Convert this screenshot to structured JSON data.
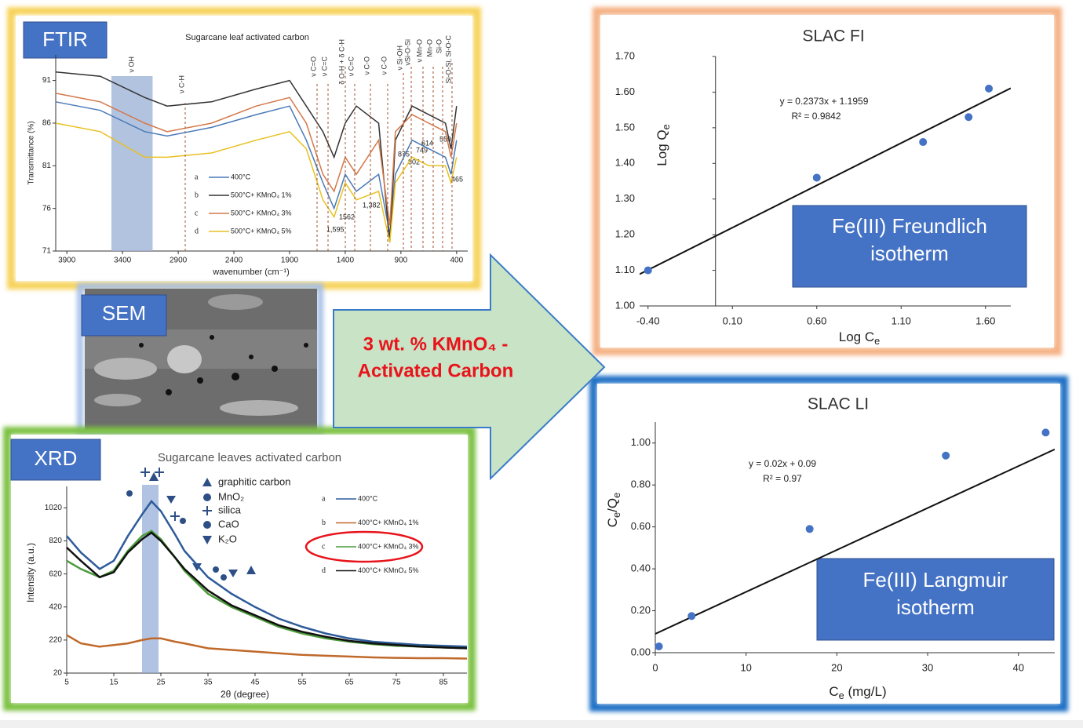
{
  "labels": {
    "ftir": "FTIR",
    "sem": "SEM",
    "xrd": "XRD"
  },
  "arrow_text": [
    "3 wt. % KMnO₄ -",
    "Activated Carbon"
  ],
  "freundlich_box": [
    "Fe(III) Freundlich",
    "isotherm"
  ],
  "langmuir_box": [
    "Fe(III) Langmuir",
    "isotherm"
  ],
  "ftir_bands": [
    "ν OH",
    "ν C-H",
    "ν C=O",
    "ν C=C",
    "δ O-H + δ C-H",
    "ν C=C",
    "ν C-O",
    "ν C-O",
    "ν Si-OH",
    "νSi-O-Si",
    "ν Mn-O",
    "Mn-O",
    "Si-O",
    "Si-O-Si, Si-O-C"
  ],
  "ftir_peaks": [
    "1,595",
    "1562",
    "1,382",
    "875",
    "749",
    "802",
    "614",
    "559",
    "465"
  ],
  "xrd_phases": [
    "graphitic carbon",
    "MnO₂",
    "silica",
    "CaO",
    "K₂O"
  ],
  "chart_data": [
    {
      "type": "line",
      "title": "Sugarcane leaf activated carbon",
      "xlabel": "wavenumber (cm⁻¹)",
      "ylabel": "Transmittance (%)",
      "xlim": [
        4000,
        300
      ],
      "ylim": [
        71,
        94
      ],
      "xticks": [
        3900,
        3400,
        2900,
        2400,
        1900,
        1400,
        900,
        400
      ],
      "yticks": [
        91,
        86,
        81,
        76,
        71
      ],
      "x": [
        4000,
        3600,
        3200,
        3000,
        2600,
        2200,
        1900,
        1750,
        1600,
        1500,
        1400,
        1300,
        1100,
        1000,
        950,
        800,
        650,
        500,
        450,
        400
      ],
      "series": [
        {
          "key": "a",
          "name": "400°C",
          "color": "#4a7ab8",
          "values": [
            88.5,
            87.5,
            85,
            84.5,
            85.5,
            87,
            88,
            84,
            79,
            76,
            80,
            78,
            80,
            73,
            80,
            84,
            83,
            82,
            80,
            84
          ]
        },
        {
          "key": "b",
          "name": "500°C+ KMnO₄ 1%",
          "color": "#333333",
          "values": [
            92,
            91.5,
            89,
            88,
            88.5,
            90,
            91,
            88,
            85,
            82,
            86,
            88,
            86,
            72,
            84,
            88,
            87,
            86,
            83,
            88
          ]
        },
        {
          "key": "c",
          "name": "500°C+ KMnO₄ 3%",
          "color": "#d4784a",
          "values": [
            89.5,
            88.5,
            86,
            85,
            86,
            88,
            89,
            86,
            80,
            78,
            82,
            80,
            84,
            74,
            85,
            87,
            86,
            85,
            82,
            86
          ]
        },
        {
          "key": "d",
          "name": "500°C+ KMnO₄ 5%",
          "color": "#e8c020",
          "values": [
            86,
            85,
            82,
            82,
            82.5,
            84,
            85,
            83,
            77,
            75,
            79,
            77,
            78,
            72,
            79,
            82,
            81,
            81,
            79,
            82
          ]
        }
      ]
    },
    {
      "type": "line",
      "title": "Sugarcane leaves activated carbon",
      "xlabel": "2θ (degree)",
      "ylabel": "Intensity (a.u.)",
      "xlim": [
        5,
        90
      ],
      "ylim": [
        20,
        1150
      ],
      "xticks": [
        5,
        15,
        25,
        35,
        45,
        55,
        65,
        75,
        85
      ],
      "yticks": [
        20,
        220,
        420,
        620,
        820,
        1020
      ],
      "x": [
        5,
        8,
        12,
        15,
        18,
        21,
        23,
        25,
        28,
        30,
        35,
        40,
        45,
        50,
        55,
        60,
        65,
        70,
        75,
        80,
        85,
        90
      ],
      "series": [
        {
          "key": "a",
          "name": "400°C",
          "color": "#2e5b9a",
          "values": [
            850,
            750,
            650,
            700,
            850,
            980,
            1060,
            1000,
            860,
            760,
            600,
            500,
            420,
            350,
            300,
            260,
            230,
            210,
            200,
            190,
            185,
            180
          ]
        },
        {
          "key": "b",
          "name": "400°C+ KMnO₄ 1%",
          "color": "#c0692a",
          "values": [
            250,
            200,
            180,
            190,
            200,
            220,
            230,
            230,
            210,
            200,
            170,
            160,
            150,
            140,
            130,
            125,
            120,
            115,
            112,
            110,
            110,
            108
          ]
        },
        {
          "key": "c",
          "name": "400°C+ KMnO₄ 3%",
          "color": "#4c9a3a",
          "values": [
            700,
            650,
            600,
            640,
            760,
            850,
            880,
            830,
            720,
            640,
            500,
            420,
            360,
            300,
            260,
            230,
            210,
            195,
            185,
            180,
            175,
            170
          ]
        },
        {
          "key": "d",
          "name": "400°C+ KMnO₄ 5%",
          "color": "#111111",
          "values": [
            780,
            700,
            600,
            630,
            750,
            830,
            870,
            820,
            720,
            650,
            520,
            430,
            370,
            310,
            270,
            240,
            215,
            200,
            190,
            180,
            175,
            170
          ]
        }
      ]
    },
    {
      "type": "scatter",
      "title": "SLAC FI",
      "xlabel": [
        "Log C",
        "e"
      ],
      "ylabel": [
        "Log Q",
        "e"
      ],
      "xlim": [
        -0.45,
        1.75
      ],
      "ylim": [
        1.0,
        1.7
      ],
      "xticks": [
        {
          "value": -0.4,
          "label": "-0.40"
        },
        {
          "value": 0.1,
          "label": "0.10"
        },
        {
          "value": 0.6,
          "label": "0.60"
        },
        {
          "value": 1.1,
          "label": "1.10"
        },
        {
          "value": 1.6,
          "label": "1.60"
        }
      ],
      "yticks": [
        {
          "value": 1.0,
          "label": "1.00"
        },
        {
          "value": 1.1,
          "label": "1.10"
        },
        {
          "value": 1.2,
          "label": "1.20"
        },
        {
          "value": 1.3,
          "label": "1.30"
        },
        {
          "value": 1.4,
          "label": "1.40"
        },
        {
          "value": 1.5,
          "label": "1.50"
        },
        {
          "value": 1.6,
          "label": "1.60"
        },
        {
          "value": 1.7,
          "label": "1.70"
        }
      ],
      "x": [
        -0.4,
        0.6,
        1.23,
        1.5,
        1.62
      ],
      "values": [
        1.1,
        1.36,
        1.46,
        1.53,
        1.61
      ],
      "color": "#4472c4",
      "trendline": {
        "slope": 0.2373,
        "intercept": 1.1959,
        "equation": "y = 0.2373x + 1.1959",
        "r2": "R² = 0.9842"
      }
    },
    {
      "type": "scatter",
      "title": "SLAC LI",
      "xlabel": [
        "C",
        "e",
        " (mg/L)"
      ],
      "ylabel": [
        "C",
        "e",
        "/Q",
        "e"
      ],
      "xlim": [
        0,
        44
      ],
      "ylim": [
        0,
        1.1
      ],
      "xticks": [
        0,
        10,
        20,
        30,
        40
      ],
      "yticks": [
        {
          "value": 0,
          "label": "0.00"
        },
        {
          "value": 0.2,
          "label": "0.20"
        },
        {
          "value": 0.4,
          "label": "0.40"
        },
        {
          "value": 0.6,
          "label": "0.60"
        },
        {
          "value": 0.8,
          "label": "0.80"
        },
        {
          "value": 1.0,
          "label": "1.00"
        }
      ],
      "x": [
        0.4,
        4,
        17,
        32,
        43
      ],
      "values": [
        0.03,
        0.175,
        0.59,
        0.94,
        1.05
      ],
      "color": "#4472c4",
      "trendline": {
        "slope": 0.02,
        "intercept": 0.09,
        "equation": "y = 0.02x + 0.09",
        "r2": "R² = 0.97"
      }
    }
  ]
}
